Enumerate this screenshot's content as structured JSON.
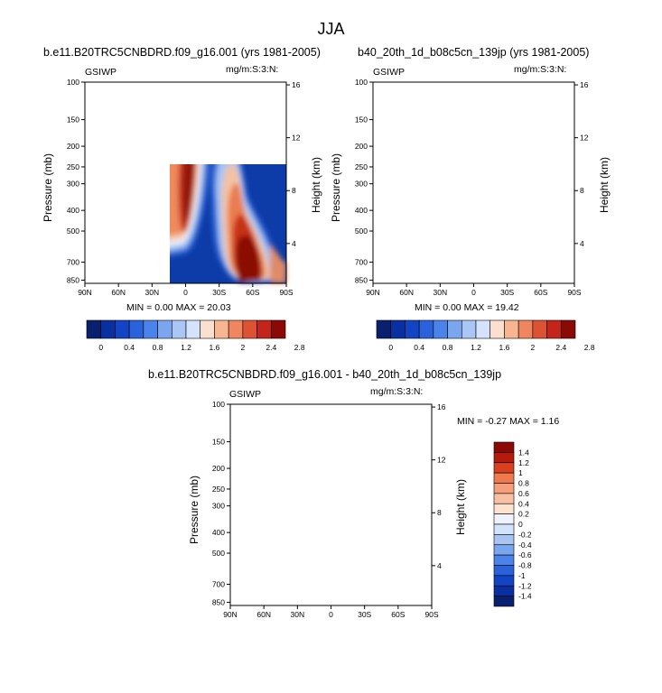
{
  "title": "JJA",
  "chart_data": [
    {
      "type": "heatmap",
      "title": "b.e11.B20TRC5CNBDRD.f09_g16.001 (yrs 1981-2005)",
      "left_label": "GSIWP",
      "right_label": "mg/m:S:3:N:",
      "xlabel": "",
      "ylabel": "Pressure (mb)",
      "ylabel_right": "Height (km)",
      "x_ticks": [
        "90N",
        "60N",
        "30N",
        "0",
        "30S",
        "60S",
        "90S"
      ],
      "y_ticks": [
        "100",
        "150",
        "200",
        "250",
        "300",
        "400",
        "500",
        "700",
        "850"
      ],
      "y_ticks_right": [
        "16",
        "12",
        "8",
        "4"
      ],
      "stats": "MIN =   0.00  MAX = 20.03",
      "colorbar_ticks": [
        "0",
        "0.4",
        "0.8",
        "1.2",
        "1.6",
        "2",
        "2.4",
        "2.8"
      ],
      "colorbar_levels": 14
    },
    {
      "type": "heatmap",
      "title": "b40_20th_1d_b08c5cn_139jp (yrs 1981-2005)",
      "left_label": "GSIWP",
      "right_label": "mg/m:S:3:N:",
      "xlabel": "",
      "ylabel": "Pressure (mb)",
      "ylabel_right": "Height (km)",
      "x_ticks": [
        "90N",
        "60N",
        "30N",
        "0",
        "30S",
        "60S",
        "90S"
      ],
      "y_ticks": [
        "100",
        "150",
        "200",
        "250",
        "300",
        "400",
        "500",
        "700",
        "850"
      ],
      "y_ticks_right": [
        "16",
        "12",
        "8",
        "4"
      ],
      "stats": "MIN =   0.00  MAX = 19.42",
      "colorbar_ticks": [
        "0",
        "0.4",
        "0.8",
        "1.2",
        "1.6",
        "2",
        "2.4",
        "2.8"
      ],
      "colorbar_levels": 14
    },
    {
      "type": "heatmap",
      "title": "b.e11.B20TRC5CNBDRD.f09_g16.001 - b40_20th_1d_b08c5cn_139jp",
      "left_label": "GSIWP",
      "right_label": "mg/m:S:3:N:",
      "xlabel": "",
      "ylabel": "Pressure (mb)",
      "ylabel_right": "Height (km)",
      "x_ticks": [
        "90N",
        "60N",
        "30N",
        "0",
        "30S",
        "60S",
        "90S"
      ],
      "y_ticks": [
        "100",
        "150",
        "200",
        "250",
        "300",
        "400",
        "500",
        "700",
        "850"
      ],
      "y_ticks_right": [
        "16",
        "12",
        "8",
        "4"
      ],
      "stats": "MIN = -0.27  MAX =   1.16",
      "colorbar_ticks": [
        "1.4",
        "1.2",
        "1",
        "0.8",
        "0.6",
        "0.4",
        "0.2",
        "0",
        "-0.2",
        "-0.4",
        "-0.6",
        "-0.8",
        "-1",
        "-1.2",
        "-1.4"
      ],
      "colorbar_levels": 16
    }
  ]
}
